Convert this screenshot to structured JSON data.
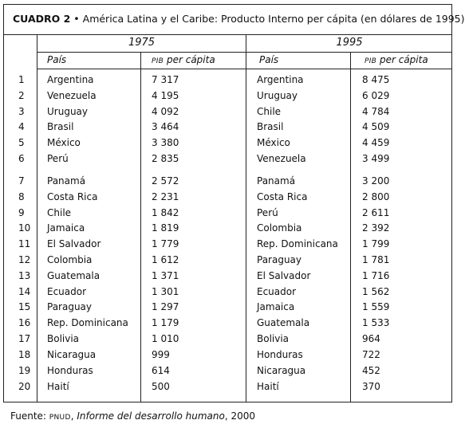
{
  "table": {
    "title_label": "CUADRO 2",
    "title_bullet": "•",
    "title_text": "América Latina y el Caribe: Producto Interno per cápita  (en dólares de 1995)",
    "year_left": "1975",
    "year_right": "1995",
    "col_country": "País",
    "col_pib_prefix": "PIB",
    "col_pib_suffix": "per cápita",
    "rows": [
      {
        "rank": "1",
        "c1975": "Argentina",
        "v1975": "7 317",
        "c1995": "Argentina",
        "v1995": "8 475"
      },
      {
        "rank": "2",
        "c1975": "Venezuela",
        "v1975": "4 195",
        "c1995": "Uruguay",
        "v1995": "6 029"
      },
      {
        "rank": "3",
        "c1975": "Uruguay",
        "v1975": "4 092",
        "c1995": "Chile",
        "v1995": "4 784"
      },
      {
        "rank": "4",
        "c1975": "Brasil",
        "v1975": "3 464",
        "c1995": "Brasil",
        "v1995": "4 509"
      },
      {
        "rank": "5",
        "c1975": "México",
        "v1975": "3 380",
        "c1995": "México",
        "v1995": "4 459"
      },
      {
        "rank": "6",
        "c1975": "Perú",
        "v1975": "2 835",
        "c1995": "Venezuela",
        "v1995": "3 499"
      },
      {
        "rank": "7",
        "c1975": "Panamá",
        "v1975": "2 572",
        "c1995": "Panamá",
        "v1995": "3 200"
      },
      {
        "rank": "8",
        "c1975": "Costa Rica",
        "v1975": "2 231",
        "c1995": "Costa Rica",
        "v1995": "2 800"
      },
      {
        "rank": "9",
        "c1975": "Chile",
        "v1975": "1 842",
        "c1995": "Perú",
        "v1995": "2 611"
      },
      {
        "rank": "10",
        "c1975": "Jamaica",
        "v1975": "1 819",
        "c1995": "Colombia",
        "v1995": "2 392"
      },
      {
        "rank": "11",
        "c1975": "El Salvador",
        "v1975": "1 779",
        "c1995": "Rep. Dominicana",
        "v1995": "1 799"
      },
      {
        "rank": "12",
        "c1975": "Colombia",
        "v1975": "1 612",
        "c1995": "Paraguay",
        "v1995": "1 781"
      },
      {
        "rank": "13",
        "c1975": "Guatemala",
        "v1975": "1 371",
        "c1995": "El Salvador",
        "v1995": "1 716"
      },
      {
        "rank": "14",
        "c1975": "Ecuador",
        "v1975": "1 301",
        "c1995": "Ecuador",
        "v1995": "1 562"
      },
      {
        "rank": "15",
        "c1975": "Paraguay",
        "v1975": "1 297",
        "c1995": "Jamaica",
        "v1995": "1 559"
      },
      {
        "rank": "16",
        "c1975": "Rep. Dominicana",
        "v1975": "1 179",
        "c1995": "Guatemala",
        "v1995": "1 533"
      },
      {
        "rank": "17",
        "c1975": "Bolivia",
        "v1975": "1 010",
        "c1995": "Bolivia",
        "v1995": "964"
      },
      {
        "rank": "18",
        "c1975": "Nicaragua",
        "v1975": "999",
        "c1995": "Honduras",
        "v1995": "722"
      },
      {
        "rank": "19",
        "c1975": "Honduras",
        "v1975": "614",
        "c1995": "Nicaragua",
        "v1995": "452"
      },
      {
        "rank": "20",
        "c1975": "Haití",
        "v1975": "500",
        "c1995": "Haití",
        "v1995": "370"
      }
    ]
  },
  "footer": {
    "prefix": "Fuente: ",
    "org": "PNUD",
    "sep": ", ",
    "report": "Informe del desarrollo humano",
    "year": ", 2000"
  }
}
